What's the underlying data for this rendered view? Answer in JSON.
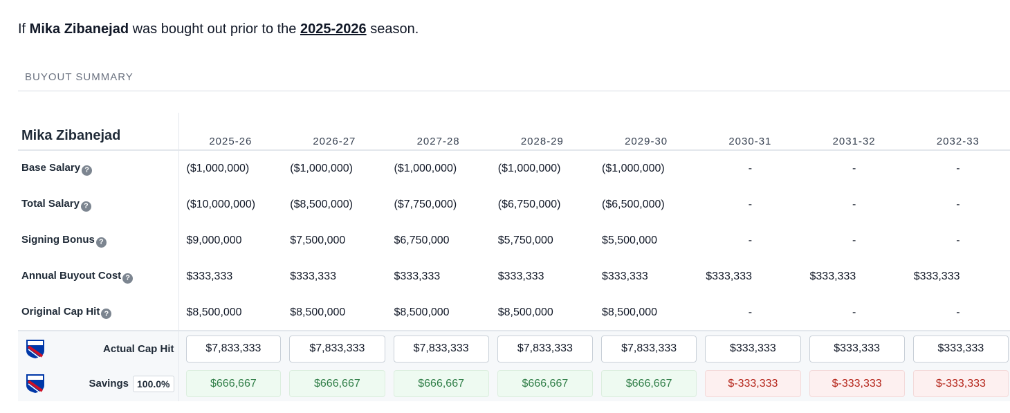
{
  "intro": {
    "prefix": "If ",
    "player": "Mika Zibanejad",
    "middle": " was bought out prior to the ",
    "season": "2025-2026",
    "suffix": " season."
  },
  "section_title": "BUYOUT SUMMARY",
  "table": {
    "player_name": "Mika Zibanejad",
    "years": [
      "2025-26",
      "2026-27",
      "2027-28",
      "2028-29",
      "2029-30",
      "2030-31",
      "2031-32",
      "2032-33"
    ],
    "help_icon_glyph": "?",
    "rows": [
      {
        "label": "Base Salary",
        "values": [
          "($1,000,000)",
          "($1,000,000)",
          "($1,000,000)",
          "($1,000,000)",
          "($1,000,000)",
          "-",
          "-",
          "-"
        ]
      },
      {
        "label": "Total Salary",
        "values": [
          "($10,000,000)",
          "($8,500,000)",
          "($7,750,000)",
          "($6,750,000)",
          "($6,500,000)",
          "-",
          "-",
          "-"
        ]
      },
      {
        "label": "Signing Bonus",
        "values": [
          "$9,000,000",
          "$7,500,000",
          "$6,750,000",
          "$5,750,000",
          "$5,500,000",
          "-",
          "-",
          "-"
        ]
      },
      {
        "label": "Annual Buyout Cost",
        "values": [
          "$333,333",
          "$333,333",
          "$333,333",
          "$333,333",
          "$333,333",
          "$333,333",
          "$333,333",
          "$333,333"
        ]
      },
      {
        "label": "Original Cap Hit",
        "values": [
          "$8,500,000",
          "$8,500,000",
          "$8,500,000",
          "$8,500,000",
          "$8,500,000",
          "-",
          "-",
          "-"
        ]
      }
    ],
    "actual_cap_hit": {
      "label": "Actual Cap Hit",
      "logo_icon": "new-york-rangers-logo-icon",
      "values": [
        "$7,833,333",
        "$7,833,333",
        "$7,833,333",
        "$7,833,333",
        "$7,833,333",
        "$333,333",
        "$333,333",
        "$333,333"
      ]
    },
    "savings": {
      "label": "Savings",
      "percent": "100.0%",
      "logo_icon": "new-york-rangers-logo-icon",
      "values": [
        "$666,667",
        "$666,667",
        "$666,667",
        "$666,667",
        "$666,667",
        "$-333,333",
        "$-333,333",
        "$-333,333"
      ]
    }
  },
  "colors": {
    "positive": "#2e7d46",
    "positive_bg": "#eefaf1",
    "negative": "#b42318",
    "negative_bg": "#fdf0f0",
    "logo_blue": "#0038a8",
    "logo_red": "#ce1126"
  }
}
